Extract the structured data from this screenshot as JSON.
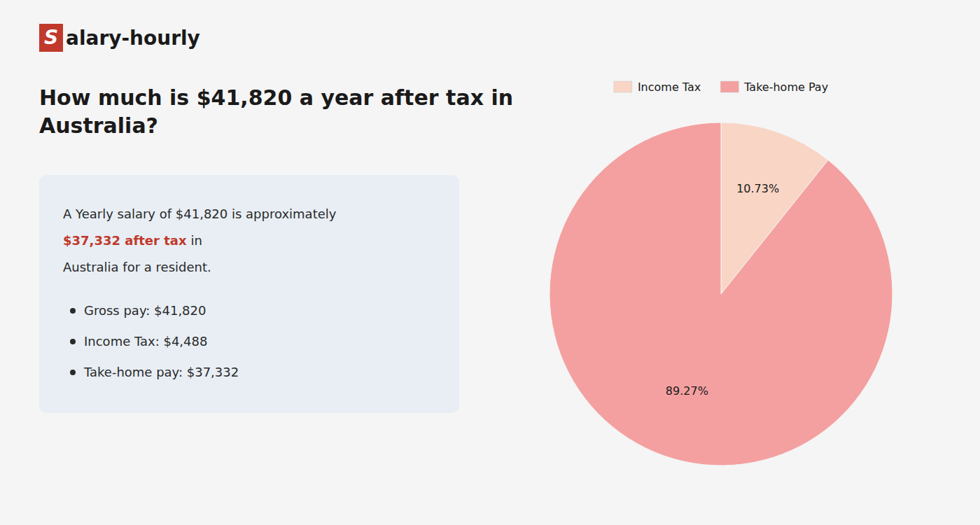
{
  "chart_data": {
    "type": "pie",
    "title": "How much is $41,820 a year after tax in\nAustralia?",
    "categories": [
      "Income Tax",
      "Take-home Pay"
    ],
    "values": [
      10.73,
      89.27
    ],
    "value_labels": [
      "10.73%",
      "89.27%"
    ],
    "colors": [
      "#f9d5c5",
      "#f4a0a0"
    ],
    "data_labels": true,
    "legend": "top",
    "annotations": [
      "S",
      "alary-hourly",
      "A Yearly salary of $41,820 is approximately",
      "$37,332 after tax",
      "in",
      "Australia for a resident.",
      "Gross pay: $41,820",
      "Income Tax: $4,488",
      "Take-home pay: $37,332"
    ]
  }
}
